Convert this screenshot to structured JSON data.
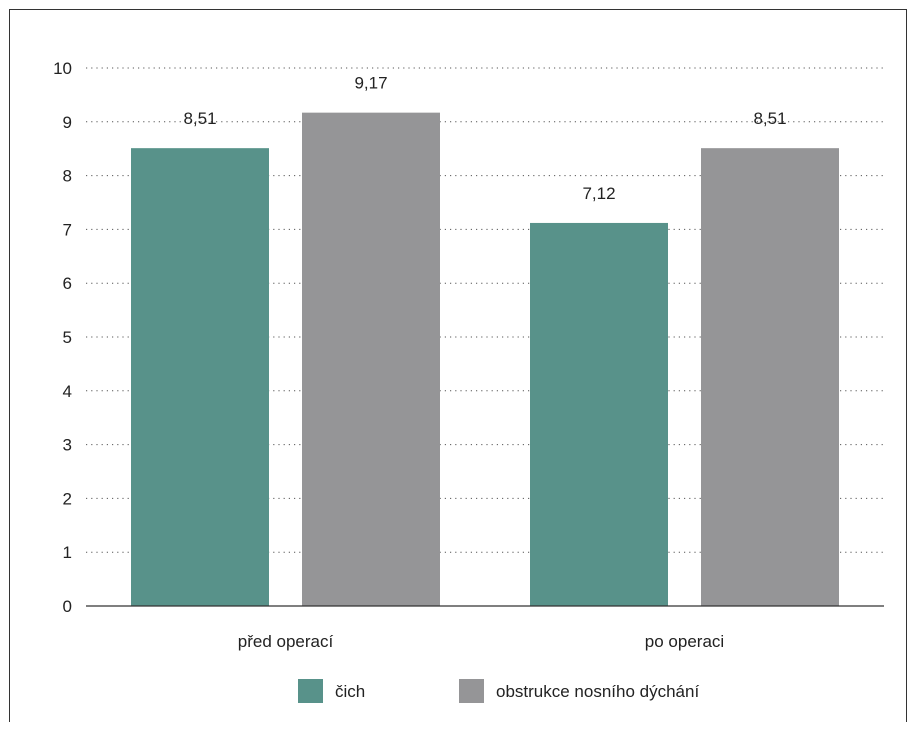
{
  "chart_data": {
    "type": "bar",
    "categories": [
      "před operací",
      "po operaci"
    ],
    "series": [
      {
        "name": "čich",
        "values": [
          8.51,
          7.12
        ],
        "labels": [
          "8,51",
          "7,12"
        ],
        "color": "#58928a"
      },
      {
        "name": "obstrukce nosního dýchání",
        "values": [
          9.17,
          8.51
        ],
        "labels": [
          "9,17",
          "8,51"
        ],
        "color": "#959597"
      }
    ],
    "ylim": [
      0,
      10
    ],
    "yticks": [
      "0",
      "1",
      "2",
      "3",
      "4",
      "5",
      "6",
      "7",
      "8",
      "9",
      "10"
    ],
    "grid": "dotted horizontal",
    "legend": "bottom"
  }
}
